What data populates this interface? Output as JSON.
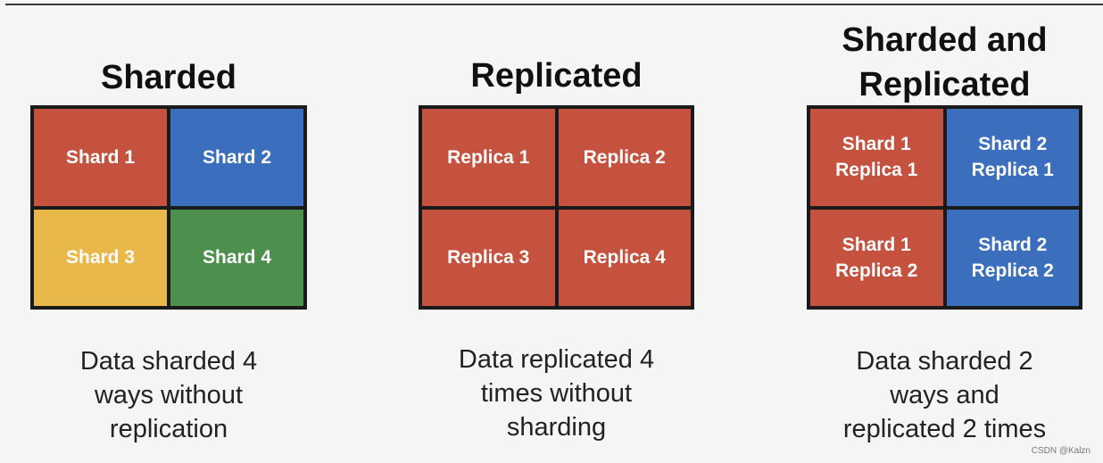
{
  "colors": {
    "red": "#c4523f",
    "blue": "#3b6fbd",
    "yellow": "#e8b84a",
    "green": "#4d8f4d"
  },
  "panels": [
    {
      "title": "Sharded",
      "cells": [
        {
          "label": "Shard 1",
          "color": "red"
        },
        {
          "label": "Shard 2",
          "color": "blue"
        },
        {
          "label": "Shard 3",
          "color": "yellow"
        },
        {
          "label": "Shard 4",
          "color": "green"
        }
      ],
      "caption": [
        "Data sharded 4",
        "ways without",
        "replication"
      ]
    },
    {
      "title": "Replicated",
      "cells": [
        {
          "label": "Replica 1",
          "color": "red"
        },
        {
          "label": "Replica 2",
          "color": "red"
        },
        {
          "label": "Replica 3",
          "color": "red"
        },
        {
          "label": "Replica 4",
          "color": "red"
        }
      ],
      "caption": [
        "Data replicated 4",
        "times without",
        "sharding"
      ]
    },
    {
      "title_lines": [
        "Sharded and",
        "Replicated"
      ],
      "cells": [
        {
          "line1": "Shard 1",
          "line2": "Replica 1",
          "color": "red"
        },
        {
          "line1": "Shard 2",
          "line2": "Replica 1",
          "color": "blue"
        },
        {
          "line1": "Shard 1",
          "line2": "Replica 2",
          "color": "red"
        },
        {
          "line1": "Shard 2",
          "line2": "Replica 2",
          "color": "blue"
        }
      ],
      "caption": [
        "Data sharded 2",
        "ways and",
        "replicated 2 times"
      ]
    }
  ],
  "watermark": "CSDN @Kalzn"
}
